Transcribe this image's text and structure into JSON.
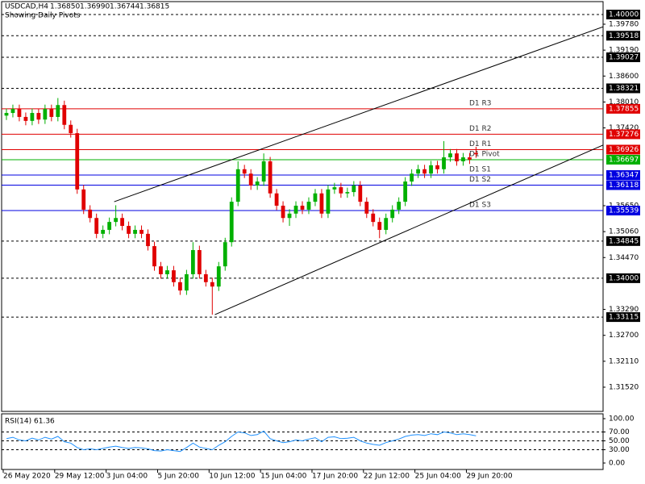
{
  "chart_data": {
    "type": "candlestick",
    "title": "USDCAD,H4",
    "quote": [
      {
        "value": 1.3685,
        "label": "1.36850"
      },
      {
        "value": 1.3699,
        "label": "1.36990"
      },
      {
        "value": 1.36744,
        "label": "1.36744"
      },
      {
        "value": 1.36815,
        "label": "1.36815"
      }
    ],
    "subtitle": "Showing Daily Pivots",
    "up_color": "#00b000",
    "down_color": "#e00000",
    "xlim": [
      -0.75,
      92.75
    ],
    "ylim": [
      1.30969,
      1.40294
    ],
    "xticks": [
      {
        "value": -0.5,
        "label": "26 May 2020"
      },
      {
        "value": 7.5,
        "label": "29 May 12:00"
      },
      {
        "value": 15.5,
        "label": "3 Jun 04:00"
      },
      {
        "value": 23.5,
        "label": "5 Jun 20:00"
      },
      {
        "value": 31.5,
        "label": "10 Jun 12:00"
      },
      {
        "value": 39.5,
        "label": "15 Jun 04:00"
      },
      {
        "value": 47.5,
        "label": "17 Jun 20:00"
      },
      {
        "value": 55.5,
        "label": "22 Jun 12:00"
      },
      {
        "value": 63.5,
        "label": "25 Jun 04:00"
      },
      {
        "value": 71.5,
        "label": "29 Jun 20:00"
      }
    ],
    "yticks": [
      {
        "value": 1.3978,
        "label": "1.39780"
      },
      {
        "value": 1.3919,
        "label": "1.39190"
      },
      {
        "value": 1.386,
        "label": "1.38600"
      },
      {
        "value": 1.3801,
        "label": "1.38010"
      },
      {
        "value": 1.3742,
        "label": "1.37420"
      },
      {
        "value": 1.3565,
        "label": "1.35650"
      },
      {
        "value": 1.3506,
        "label": "1.35060"
      },
      {
        "value": 1.3447,
        "label": "1.34470"
      },
      {
        "value": 1.3329,
        "label": "1.33290"
      },
      {
        "value": 1.327,
        "label": "1.32700"
      },
      {
        "value": 1.3211,
        "label": "1.32110"
      },
      {
        "value": 1.3152,
        "label": "1.31520"
      }
    ],
    "hlines": [
      {
        "value": 1.4,
        "value_label": "1.40000"
      },
      {
        "value": 1.39518,
        "value_label": "1.39518"
      },
      {
        "value": 1.39027,
        "value_label": "1.39027"
      },
      {
        "value": 1.38321,
        "value_label": "1.38321"
      },
      {
        "value": 1.34845,
        "value_label": "1.34845"
      },
      {
        "value": 1.34,
        "value_label": "1.34000"
      },
      {
        "value": 1.33115,
        "value_label": "1.33115"
      }
    ],
    "levels": [
      {
        "name": "D1 R3",
        "value": 1.37855,
        "value_label": "1.37855",
        "color": "#e00000"
      },
      {
        "name": "D1 R2",
        "value": 1.37276,
        "value_label": "1.37276",
        "color": "#e00000"
      },
      {
        "name": "D1 R1",
        "value": 1.36926,
        "value_label": "1.36926",
        "color": "#e00000"
      },
      {
        "name": "D1 Pivot",
        "value": 1.36697,
        "value_label": "1.36697",
        "color": "#00b000"
      },
      {
        "name": "D1 S1",
        "value": 1.36347,
        "value_label": "1.36347",
        "color": "#0000e0"
      },
      {
        "name": "D1 S2",
        "value": 1.36118,
        "value_label": "1.36118",
        "color": "#0000e0"
      },
      {
        "name": "D1 S3",
        "value": 1.35539,
        "value_label": "1.35539",
        "color": "#0000e0"
      }
    ],
    "trendlines": [
      {
        "x": [
          16.75,
          92.75
        ],
        "y": [
          1.3574,
          1.3972
        ]
      },
      {
        "x": [
          32.4,
          92.75
        ],
        "y": [
          1.3317,
          1.3703
        ]
      }
    ],
    "ohlc": [
      [
        1.377,
        1.3786,
        1.376,
        1.3776
      ],
      [
        1.3776,
        1.3795,
        1.3766,
        1.3785
      ],
      [
        1.3785,
        1.3795,
        1.3757,
        1.3767
      ],
      [
        1.3767,
        1.3777,
        1.3748,
        1.3758
      ],
      [
        1.3758,
        1.3786,
        1.3748,
        1.3776
      ],
      [
        1.3776,
        1.3786,
        1.3751,
        1.3761
      ],
      [
        1.3761,
        1.3795,
        1.3751,
        1.3785
      ],
      [
        1.3785,
        1.3795,
        1.3757,
        1.3767
      ],
      [
        1.3767,
        1.381,
        1.3757,
        1.3794
      ],
      [
        1.3794,
        1.3804,
        1.3739,
        1.3749
      ],
      [
        1.3749,
        1.3759,
        1.372,
        1.373
      ],
      [
        1.373,
        1.374,
        1.3592,
        1.3602
      ],
      [
        1.3602,
        1.3612,
        1.3546,
        1.3556
      ],
      [
        1.3556,
        1.3566,
        1.3527,
        1.3537
      ],
      [
        1.3537,
        1.3547,
        1.3491,
        1.3501
      ],
      [
        1.3501,
        1.352,
        1.3491,
        1.351
      ],
      [
        1.351,
        1.3538,
        1.35,
        1.3528
      ],
      [
        1.3528,
        1.3566,
        1.3518,
        1.3537
      ],
      [
        1.3537,
        1.3547,
        1.3509,
        1.3519
      ],
      [
        1.3519,
        1.3529,
        1.3491,
        1.3501
      ],
      [
        1.3501,
        1.352,
        1.3491,
        1.351
      ],
      [
        1.351,
        1.352,
        1.3491,
        1.3501
      ],
      [
        1.3501,
        1.3511,
        1.3463,
        1.3473
      ],
      [
        1.3473,
        1.3483,
        1.3417,
        1.3427
      ],
      [
        1.3427,
        1.3437,
        1.3399,
        1.3409
      ],
      [
        1.3409,
        1.3428,
        1.3399,
        1.3418
      ],
      [
        1.3418,
        1.3428,
        1.3381,
        1.3391
      ],
      [
        1.3391,
        1.3401,
        1.3362,
        1.3372
      ],
      [
        1.3372,
        1.3419,
        1.3362,
        1.3409
      ],
      [
        1.3409,
        1.3482,
        1.3399,
        1.3464
      ],
      [
        1.3464,
        1.3474,
        1.3399,
        1.3409
      ],
      [
        1.3409,
        1.3419,
        1.3381,
        1.3391
      ],
      [
        1.3391,
        1.3401,
        1.3317,
        1.3381
      ],
      [
        1.3381,
        1.3437,
        1.3371,
        1.3427
      ],
      [
        1.3427,
        1.3492,
        1.3417,
        1.3482
      ],
      [
        1.3482,
        1.3584,
        1.3472,
        1.3574
      ],
      [
        1.3574,
        1.3666,
        1.3564,
        1.3648
      ],
      [
        1.3648,
        1.3658,
        1.3628,
        1.3638
      ],
      [
        1.3638,
        1.3648,
        1.3601,
        1.3611
      ],
      [
        1.3611,
        1.363,
        1.3601,
        1.362
      ],
      [
        1.362,
        1.3684,
        1.361,
        1.3666
      ],
      [
        1.3666,
        1.3676,
        1.3583,
        1.3593
      ],
      [
        1.3593,
        1.3603,
        1.3555,
        1.3565
      ],
      [
        1.3565,
        1.3575,
        1.3527,
        1.3537
      ],
      [
        1.3537,
        1.3557,
        1.3519,
        1.3547
      ],
      [
        1.3547,
        1.3575,
        1.3537,
        1.3565
      ],
      [
        1.3565,
        1.3575,
        1.3546,
        1.3556
      ],
      [
        1.3556,
        1.3584,
        1.3546,
        1.3574
      ],
      [
        1.3574,
        1.3603,
        1.3564,
        1.3593
      ],
      [
        1.3593,
        1.3603,
        1.3537,
        1.3547
      ],
      [
        1.3547,
        1.3612,
        1.3537,
        1.3602
      ],
      [
        1.3602,
        1.3617,
        1.3592,
        1.3607
      ],
      [
        1.3607,
        1.3617,
        1.3583,
        1.3593
      ],
      [
        1.3593,
        1.3606,
        1.3583,
        1.3596
      ],
      [
        1.3596,
        1.3621,
        1.3586,
        1.3611
      ],
      [
        1.3611,
        1.3621,
        1.3564,
        1.3574
      ],
      [
        1.3574,
        1.3584,
        1.3537,
        1.3547
      ],
      [
        1.3547,
        1.3557,
        1.3518,
        1.3528
      ],
      [
        1.3528,
        1.3538,
        1.3491,
        1.351
      ],
      [
        1.351,
        1.3547,
        1.35,
        1.3537
      ],
      [
        1.3537,
        1.3566,
        1.3527,
        1.3556
      ],
      [
        1.3556,
        1.3584,
        1.3546,
        1.3574
      ],
      [
        1.3574,
        1.363,
        1.3564,
        1.362
      ],
      [
        1.362,
        1.3648,
        1.361,
        1.3638
      ],
      [
        1.3638,
        1.3658,
        1.3628,
        1.3648
      ],
      [
        1.3648,
        1.3658,
        1.3628,
        1.3638
      ],
      [
        1.3638,
        1.3667,
        1.3628,
        1.3657
      ],
      [
        1.3657,
        1.3667,
        1.3638,
        1.3648
      ],
      [
        1.3648,
        1.3712,
        1.3638,
        1.3675
      ],
      [
        1.3675,
        1.3694,
        1.3665,
        1.3684
      ],
      [
        1.3684,
        1.3694,
        1.3656,
        1.3666
      ],
      [
        1.3666,
        1.3685,
        1.3656,
        1.3675
      ],
      [
        1.3675,
        1.3685,
        1.366,
        1.367
      ],
      [
        1.3685,
        1.3699,
        1.3674,
        1.3682
      ]
    ],
    "rsi": {
      "name": "RSI(14)",
      "color": "#1e90ff",
      "ylim": [
        0,
        100
      ],
      "yticks": [
        {
          "value": 100,
          "label": "100.00"
        },
        {
          "value": 70,
          "label": "70.00"
        },
        {
          "value": 50,
          "label": "50.00"
        },
        {
          "value": 30,
          "label": "30.00"
        },
        {
          "value": 0,
          "label": "0.00"
        }
      ],
      "levels": [
        70,
        50,
        30
      ],
      "values": [
        55,
        58,
        52,
        50,
        56,
        52,
        58,
        54,
        60,
        48,
        45,
        35,
        30,
        32,
        30,
        33,
        36,
        38,
        35,
        33,
        35,
        34,
        32,
        28,
        27,
        30,
        28,
        26,
        35,
        45,
        36,
        33,
        30,
        40,
        48,
        60,
        70,
        68,
        62,
        64,
        72,
        55,
        50,
        46,
        48,
        52,
        50,
        54,
        57,
        48,
        58,
        59,
        55,
        56,
        58,
        50,
        45,
        42,
        40,
        46,
        50,
        54,
        60,
        63,
        64,
        62,
        66,
        64,
        70,
        68,
        64,
        66,
        64,
        61.36
      ]
    }
  }
}
